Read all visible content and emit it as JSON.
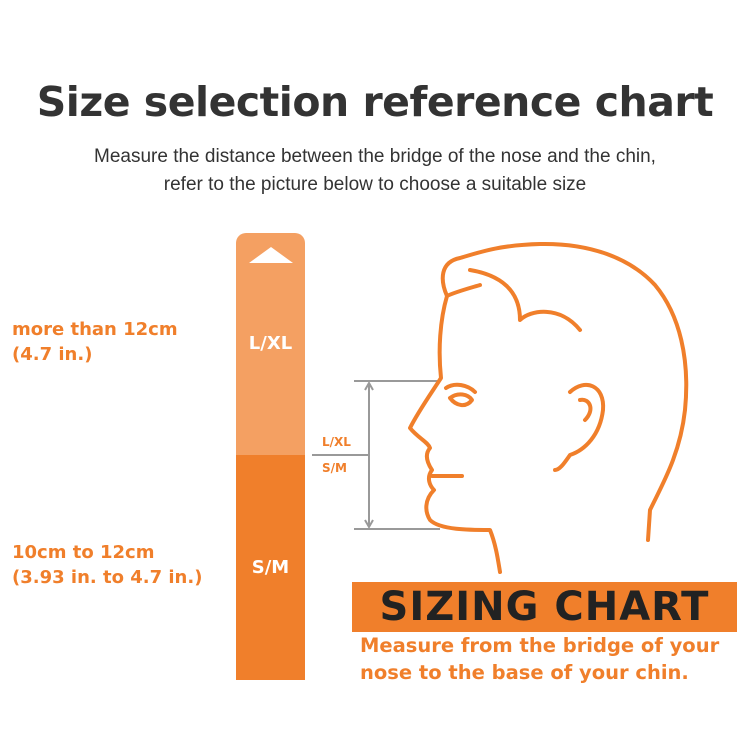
{
  "header": {
    "title": "Size selection reference chart",
    "subtitle_line1": "Measure the distance between the bridge of the nose and the chin,",
    "subtitle_line2": "refer to the picture below to choose a suitable size"
  },
  "sizes": [
    {
      "label": "L/XL",
      "range_line1": "more than 12cm",
      "range_line2": "(4.7 in.)",
      "color": "#F4A062"
    },
    {
      "label": "S/M",
      "range_line1": "10cm to 12cm",
      "range_line2": "(3.93 in. to 4.7 in.)",
      "color": "#F07F2B"
    }
  ],
  "diagram": {
    "upper_label": "L/XL",
    "lower_label": "S/M",
    "icon": "head-profile-icon"
  },
  "sizing_chart": {
    "title": "SIZING CHART",
    "line1": "Measure from the bridge of your",
    "line2": "nose to the base of your chin."
  },
  "colors": {
    "accent": "#F07F2B",
    "accent_light": "#F4A062",
    "text": "#333333",
    "measure_line": "#999999"
  }
}
